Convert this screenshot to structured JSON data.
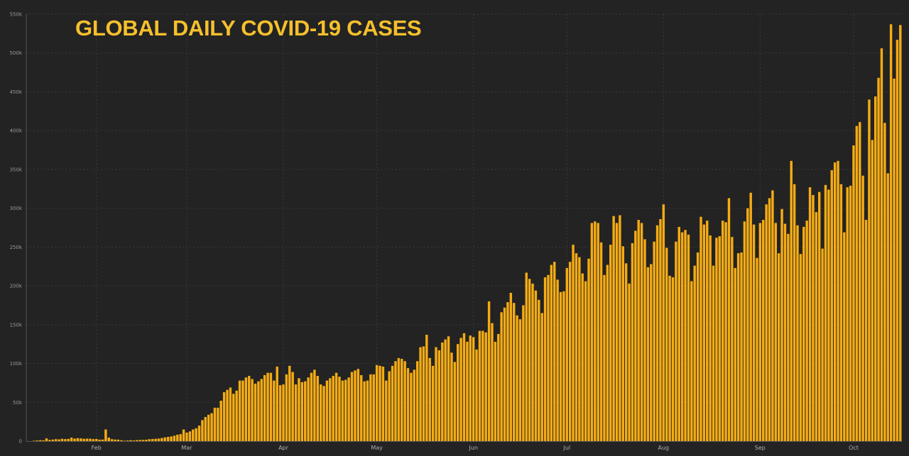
{
  "chart_data": {
    "type": "bar",
    "title": "GLOBAL DAILY COVID-19 CASES",
    "xlabel": "",
    "ylabel": "",
    "x_start": "2020-01-10",
    "x_end": "2020-10-16",
    "x_ticks": [
      {
        "label": "Feb",
        "date": "2020-02-01"
      },
      {
        "label": "Mar",
        "date": "2020-03-01"
      },
      {
        "label": "Apr",
        "date": "2020-04-01"
      },
      {
        "label": "May",
        "date": "2020-05-01"
      },
      {
        "label": "Jun",
        "date": "2020-06-01"
      },
      {
        "label": "Jul",
        "date": "2020-07-01"
      },
      {
        "label": "Aug",
        "date": "2020-08-01"
      },
      {
        "label": "Sep",
        "date": "2020-09-01"
      },
      {
        "label": "Oct",
        "date": "2020-10-01"
      }
    ],
    "y_ticks": [
      {
        "label": "0",
        "value": 0
      },
      {
        "label": "50k",
        "value": 50000
      },
      {
        "label": "100k",
        "value": 100000
      },
      {
        "label": "150k",
        "value": 150000
      },
      {
        "label": "200k",
        "value": 200000
      },
      {
        "label": "250k",
        "value": 250000
      },
      {
        "label": "300k",
        "value": 300000
      },
      {
        "label": "350k",
        "value": 350000
      },
      {
        "label": "400k",
        "value": 400000
      },
      {
        "label": "450k",
        "value": 450000
      },
      {
        "label": "500k",
        "value": 500000
      },
      {
        "label": "550k",
        "value": 550000
      }
    ],
    "ylim": [
      0,
      550000
    ],
    "grid": true,
    "legend": "none",
    "bar_color": "#f5ac14",
    "background": "#232323",
    "title_color": "#f6c02c",
    "values": [
      500,
      800,
      1200,
      1000,
      3500,
      1500,
      2000,
      2500,
      2200,
      3000,
      2600,
      2800,
      4500,
      3200,
      3800,
      3500,
      3000,
      3200,
      3100,
      2600,
      2800,
      1900,
      2000,
      15000,
      4500,
      2500,
      2000,
      1900,
      1100,
      500,
      800,
      1200,
      900,
      1300,
      1500,
      1600,
      1800,
      2500,
      2700,
      3000,
      3300,
      4000,
      4800,
      5500,
      6000,
      7000,
      8200,
      9000,
      15000,
      11000,
      12500,
      15000,
      16500,
      20000,
      27000,
      31000,
      34000,
      36000,
      43000,
      43000,
      52000,
      63000,
      66000,
      69000,
      61000,
      65000,
      78000,
      78000,
      82000,
      84000,
      80000,
      74000,
      77000,
      80000,
      85000,
      88000,
      88000,
      78000,
      96000,
      72000,
      73000,
      86000,
      97000,
      89000,
      73000,
      81000,
      76000,
      77000,
      82000,
      88000,
      92000,
      84000,
      73000,
      71000,
      78000,
      81000,
      84000,
      88000,
      83000,
      78000,
      79000,
      82000,
      89000,
      91000,
      93000,
      85000,
      77000,
      78000,
      86000,
      86000,
      98000,
      97000,
      96000,
      78000,
      90000,
      97000,
      103000,
      107000,
      106000,
      103000,
      94000,
      88000,
      92000,
      103000,
      121000,
      122000,
      137000,
      107000,
      97000,
      121000,
      117000,
      127000,
      131000,
      135000,
      114000,
      102000,
      125000,
      133000,
      139000,
      128000,
      136000,
      134000,
      118000,
      142000,
      142000,
      140000,
      180000,
      152000,
      128000,
      138000,
      166000,
      172000,
      179000,
      191000,
      178000,
      162000,
      157000,
      175000,
      217000,
      209000,
      203000,
      194000,
      182000,
      165000,
      211000,
      214000,
      227000,
      231000,
      208000,
      192000,
      193000,
      223000,
      231000,
      253000,
      242000,
      237000,
      216000,
      206000,
      235000,
      281000,
      283000,
      281000,
      256000,
      214000,
      227000,
      253000,
      290000,
      281000,
      291000,
      251000,
      229000,
      203000,
      255000,
      271000,
      285000,
      281000,
      260000,
      224000,
      228000,
      257000,
      278000,
      286000,
      305000,
      249000,
      213000,
      211000,
      257000,
      276000,
      269000,
      272000,
      266000,
      206000,
      226000,
      243000,
      289000,
      279000,
      284000,
      265000,
      226000,
      262000,
      264000,
      284000,
      282000,
      313000,
      263000,
      223000,
      242000,
      243000,
      283000,
      300000,
      320000,
      279000,
      236000,
      281000,
      285000,
      305000,
      313000,
      323000,
      281000,
      242000,
      299000,
      280000,
      267000,
      361000,
      331000,
      278000,
      241000,
      276000,
      284000,
      327000,
      317000,
      295000,
      321000,
      248000,
      330000,
      324000,
      349000,
      359000,
      361000,
      331000,
      269000,
      327000,
      329000,
      381000,
      406000,
      411000,
      342000,
      285000,
      440000,
      388000,
      444000,
      468000,
      506000,
      410000,
      345000,
      537000,
      467000,
      517000,
      536000
    ]
  }
}
